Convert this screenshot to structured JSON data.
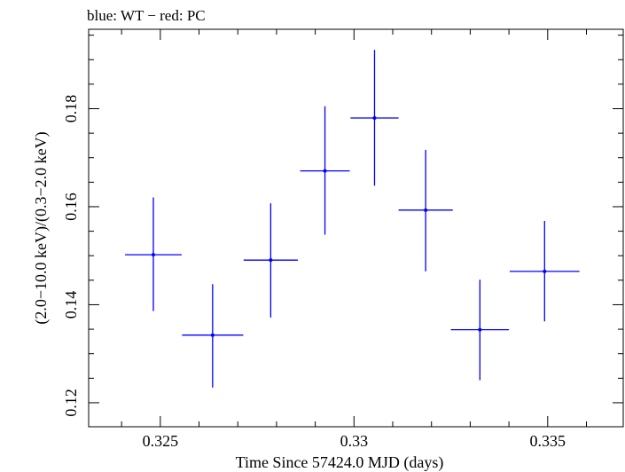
{
  "chart_data": {
    "type": "scatter",
    "title": "blue: WT − red: PC",
    "xlabel": "Time Since 57424.0 MJD (days)",
    "ylabel": "(2.0−10.0 keV)/(0.3−2.0 keV)",
    "xlim": [
      0.32315,
      0.33695
    ],
    "ylim": [
      0.1151,
      0.1962
    ],
    "xticks": [
      0.325,
      0.33,
      0.335
    ],
    "xtick_labels": [
      "0.325",
      "0.33",
      "0.335"
    ],
    "yticks": [
      0.12,
      0.14,
      0.16,
      0.18
    ],
    "ytick_labels": [
      "0.12",
      "0.14",
      "0.16",
      "0.18"
    ],
    "grid": false,
    "series": [
      {
        "color": "#0000ff",
        "points": [
          {
            "x": 0.32482,
            "y": 0.1502,
            "xerr": 0.00073,
            "yerr_lo": 0.0115,
            "yerr_hi": 0.0117
          },
          {
            "x": 0.32635,
            "y": 0.1338,
            "xerr": 0.00079,
            "yerr_lo": 0.0107,
            "yerr_hi": 0.0104
          },
          {
            "x": 0.32785,
            "y": 0.1491,
            "xerr": 0.0007,
            "yerr_lo": 0.0117,
            "yerr_hi": 0.0116
          },
          {
            "x": 0.32925,
            "y": 0.1673,
            "xerr": 0.00064,
            "yerr_lo": 0.013,
            "yerr_hi": 0.0132
          },
          {
            "x": 0.33053,
            "y": 0.1781,
            "xerr": 0.00062,
            "yerr_lo": 0.0138,
            "yerr_hi": 0.0139
          },
          {
            "x": 0.33185,
            "y": 0.1593,
            "xerr": 0.0007,
            "yerr_lo": 0.0125,
            "yerr_hi": 0.0123
          },
          {
            "x": 0.33325,
            "y": 0.1349,
            "xerr": 0.00075,
            "yerr_lo": 0.0103,
            "yerr_hi": 0.0102
          },
          {
            "x": 0.33492,
            "y": 0.1468,
            "xerr": 0.0009,
            "yerr_lo": 0.0102,
            "yerr_hi": 0.0103
          }
        ]
      }
    ]
  }
}
